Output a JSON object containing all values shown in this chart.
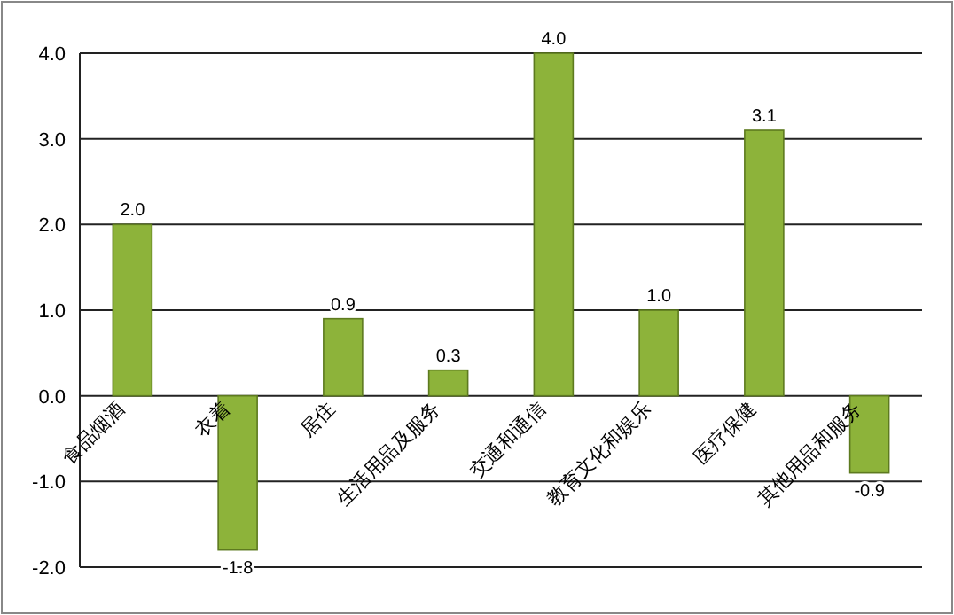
{
  "chart_data": {
    "type": "bar",
    "categories": [
      "食品烟酒",
      "衣着",
      "居住",
      "生活用品及服务",
      "交通和通信",
      "教育文化和娱乐",
      "医疗保健",
      "其他用品和服务"
    ],
    "values": [
      2.0,
      -1.8,
      0.9,
      0.3,
      4.0,
      1.0,
      3.1,
      -0.9
    ],
    "value_labels": [
      "2.0",
      "-1.8",
      "0.9",
      "0.3",
      "4.0",
      "1.0",
      "3.1",
      "-0.9"
    ],
    "color": "#8db33a",
    "ylim": [
      -2.0,
      4.0
    ],
    "yticks": [
      {
        "value": -2,
        "label": "-2.0"
      },
      {
        "value": -1,
        "label": "-1.0"
      },
      {
        "value": 0,
        "label": "0.0"
      },
      {
        "value": 1,
        "label": "1.0"
      },
      {
        "value": 2,
        "label": "2.0"
      },
      {
        "value": 3,
        "label": "3.0"
      },
      {
        "value": 4,
        "label": "4.0"
      }
    ],
    "grid": "y"
  }
}
